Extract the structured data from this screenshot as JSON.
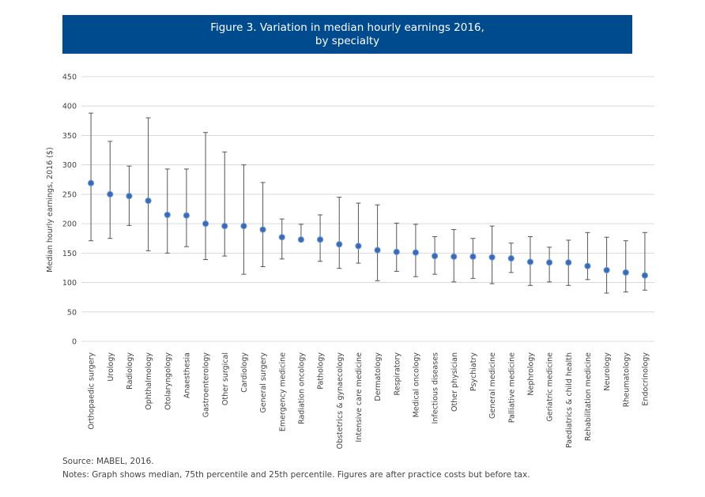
{
  "figure": {
    "title_line1": "Figure 3. Variation in median hourly earnings 2016,",
    "title_line2": "by specialty",
    "source": "Source: MABEL, 2016.",
    "notes": "Notes: Graph shows median, 75th percentile and 25th percentile. Figures are after practice costs but before tax."
  },
  "chart_data": {
    "type": "scatter",
    "subtype": "median with interquartile range",
    "title": "Figure 3. Variation in median hourly earnings 2016, by specialty",
    "xlabel": "",
    "ylabel": "Median hourly earnings, 2016 ($)",
    "ylim": [
      0,
      450
    ],
    "yticks": [
      0,
      50,
      100,
      150,
      200,
      250,
      300,
      350,
      400,
      450
    ],
    "grid": true,
    "legend": "none",
    "colors": {
      "marker": "#3a6ab7",
      "marker_edge": "#6f9ad6",
      "whisker": "#555555",
      "grid": "#d9d9d9",
      "title_bg": "#004b8d"
    },
    "categories": [
      "Orthopaedic surgery",
      "Urology",
      "Radiology",
      "Ophthalmology",
      "Otolaryngology",
      "Anaesthesia",
      "Gastroenterology",
      "Other surgical",
      "Cardiology",
      "General surgery",
      "Emergency medicine",
      "Radiation oncology",
      "Pathology",
      "Obstetrics & gynaecology",
      "Intensive care medicine",
      "Dermatology",
      "Respiratory",
      "Medical oncology",
      "Infectious diseases",
      "Other physician",
      "Psychiatry",
      "General medicine",
      "Palliative medicine",
      "Nephrology",
      "Geriatric medicine",
      "Paediatrics & child health",
      "Rehabilitation medicine",
      "Neurology",
      "Rheumatology",
      "Endocrinology"
    ],
    "median": [
      269,
      250,
      247,
      239,
      215,
      214,
      200,
      196,
      196,
      190,
      177,
      173,
      173,
      165,
      162,
      155,
      152,
      151,
      145,
      144,
      144,
      143,
      141,
      135,
      134,
      134,
      128,
      121,
      117,
      112
    ],
    "p75": [
      388,
      340,
      298,
      380,
      293,
      293,
      355,
      322,
      300,
      270,
      208,
      199,
      215,
      245,
      235,
      232,
      201,
      199,
      178,
      190,
      175,
      196,
      167,
      178,
      160,
      172,
      185,
      177,
      171,
      185
    ],
    "p25": [
      171,
      175,
      197,
      154,
      150,
      161,
      139,
      145,
      114,
      127,
      140,
      171,
      136,
      124,
      133,
      103,
      119,
      110,
      114,
      101,
      107,
      98,
      117,
      95,
      101,
      95,
      105,
      82,
      84,
      87
    ]
  }
}
